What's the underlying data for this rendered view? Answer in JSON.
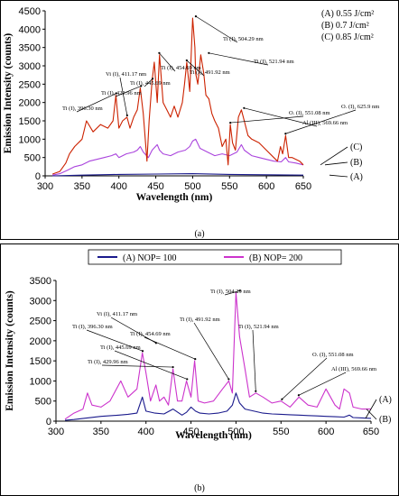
{
  "chart_data": [
    {
      "type": "line",
      "panel_label": "(a)",
      "xlabel": "Wavelength (nm)",
      "ylabel": "Emission Intensity (counts)",
      "xlim": [
        300,
        650
      ],
      "ylim": [
        0,
        4500
      ],
      "xticks": [
        300,
        350,
        400,
        450,
        500,
        550,
        600,
        650
      ],
      "yticks": [
        0,
        500,
        1000,
        1500,
        2000,
        2500,
        3000,
        3500,
        4000,
        4500
      ],
      "legend_box": [
        "(A) 0.55 J/cm²",
        "(B) 0.7 J/cm²",
        "(C) 0.85 J/cm²"
      ],
      "series": [
        {
          "tag": "(C)",
          "color": "#cc2200",
          "x": [
            310,
            320,
            328,
            333,
            340,
            350,
            356,
            365,
            375,
            385,
            392,
            396,
            400,
            405,
            411,
            415,
            420,
            425,
            429,
            433,
            438,
            441,
            445,
            448,
            452,
            455,
            460,
            465,
            470,
            475,
            480,
            486,
            489,
            492,
            496,
            500,
            503,
            504,
            507,
            511,
            515,
            518,
            522,
            526,
            530,
            535,
            540,
            545,
            548,
            551,
            554,
            558,
            562,
            566,
            570,
            575,
            580,
            590,
            600,
            610,
            615,
            619,
            622,
            626,
            630,
            635,
            640,
            645,
            650
          ],
          "y": [
            50,
            120,
            350,
            600,
            800,
            1000,
            1500,
            1200,
            1400,
            1300,
            1500,
            2200,
            1300,
            1500,
            1600,
            1300,
            1600,
            1800,
            2400,
            1700,
            400,
            1500,
            2600,
            3100,
            2000,
            3300,
            2000,
            1800,
            1600,
            1900,
            1600,
            2000,
            2500,
            3100,
            2300,
            4300,
            3500,
            2800,
            2500,
            3300,
            2800,
            2200,
            2100,
            1700,
            1500,
            1300,
            800,
            1000,
            300,
            1400,
            900,
            700,
            1600,
            1800,
            1500,
            1100,
            1000,
            900,
            700,
            500,
            400,
            800,
            600,
            1100,
            500,
            500,
            450,
            400,
            300
          ]
        },
        {
          "tag": "(B)",
          "color": "#aa44dd",
          "x": [
            310,
            320,
            330,
            340,
            350,
            360,
            370,
            380,
            390,
            396,
            400,
            410,
            420,
            425,
            429,
            433,
            440,
            445,
            452,
            455,
            460,
            470,
            480,
            490,
            496,
            500,
            504,
            510,
            520,
            530,
            540,
            550,
            560,
            566,
            570,
            580,
            590,
            600,
            610,
            620,
            626,
            630,
            640,
            650
          ],
          "y": [
            20,
            60,
            150,
            250,
            300,
            400,
            450,
            500,
            550,
            600,
            500,
            600,
            650,
            700,
            800,
            650,
            500,
            700,
            850,
            700,
            600,
            550,
            650,
            700,
            800,
            950,
            1000,
            750,
            650,
            550,
            600,
            550,
            650,
            850,
            700,
            550,
            500,
            450,
            400,
            380,
            500,
            380,
            350,
            300
          ]
        },
        {
          "tag": "(A)",
          "color": "#1a1a8c",
          "x": [
            310,
            350,
            400,
            450,
            500,
            550,
            600,
            650
          ],
          "y": [
            0,
            20,
            40,
            50,
            60,
            40,
            30,
            20
          ]
        }
      ],
      "annotations": [
        {
          "text": "Ti (I), 396.30 nm",
          "x": 396.3,
          "y": 2200
        },
        {
          "text": "Ti (I), 429.96 nm",
          "x": 429.96,
          "y": 2400
        },
        {
          "text": "Vi (I), 411.17 nm",
          "x": 411.17,
          "y": 1600
        },
        {
          "text": "Ti (I), 445.69 nm",
          "x": 445.69,
          "y": 2600
        },
        {
          "text": "Ti (I), 454.69 nm",
          "x": 454.69,
          "y": 3300
        },
        {
          "text": "Ti (I), 491.92 nm",
          "x": 491.92,
          "y": 3100
        },
        {
          "text": "Ti (I), 504.29 nm",
          "x": 504.29,
          "y": 4300
        },
        {
          "text": "Ti (I), 521.94 nm",
          "x": 521.94,
          "y": 3300
        },
        {
          "text": "O. (I), 551.08 nm",
          "x": 551.08,
          "y": 1400
        },
        {
          "text": "Al (III), 569.66 nm",
          "x": 569.66,
          "y": 1800
        },
        {
          "text": "O. (I), 625.9 nm",
          "x": 625.9,
          "y": 1100
        }
      ]
    },
    {
      "type": "line",
      "panel_label": "(b)",
      "xlabel": "Wavelength (nm)",
      "ylabel": "Emission Intensity (counts)",
      "xlim": [
        300,
        650
      ],
      "ylim": [
        0,
        3500
      ],
      "xticks": [
        300,
        350,
        400,
        450,
        500,
        550,
        600,
        650
      ],
      "yticks": [
        0,
        500,
        1000,
        1500,
        2000,
        2500,
        3000,
        3500
      ],
      "series": [
        {
          "name": "(A) NOP= 100",
          "tag": "(A)",
          "color": "#1a1a8c",
          "x": [
            310,
            320,
            335,
            350,
            370,
            380,
            390,
            396,
            400,
            410,
            420,
            430,
            440,
            445,
            450,
            455,
            460,
            470,
            480,
            490,
            496,
            500,
            504,
            510,
            520,
            530,
            540,
            550,
            560,
            570,
            580,
            590,
            600,
            610,
            620,
            626,
            630,
            640,
            650
          ],
          "y": [
            20,
            40,
            80,
            120,
            150,
            170,
            200,
            600,
            250,
            200,
            180,
            300,
            150,
            220,
            350,
            250,
            200,
            180,
            200,
            250,
            400,
            700,
            450,
            300,
            250,
            200,
            180,
            170,
            160,
            150,
            140,
            130,
            120,
            110,
            100,
            150,
            90,
            80,
            70
          ]
        },
        {
          "name": "(B) NOP= 200",
          "tag": "(B)",
          "color": "#cc33cc",
          "x": [
            310,
            320,
            330,
            335,
            340,
            350,
            360,
            372,
            380,
            390,
            396,
            400,
            405,
            411,
            415,
            420,
            425,
            430,
            435,
            440,
            445,
            450,
            454,
            458,
            465,
            475,
            485,
            492,
            496,
            500,
            504,
            510,
            515,
            522,
            530,
            540,
            550,
            560,
            570,
            580,
            590,
            600,
            610,
            615,
            620,
            626,
            630,
            640,
            650
          ],
          "y": [
            50,
            200,
            300,
            700,
            400,
            350,
            500,
            1000,
            600,
            800,
            1700,
            1200,
            500,
            900,
            500,
            600,
            400,
            1300,
            500,
            500,
            1000,
            600,
            1500,
            500,
            450,
            500,
            800,
            1000,
            700,
            3200,
            2100,
            1300,
            600,
            700,
            600,
            450,
            500,
            350,
            600,
            400,
            350,
            800,
            400,
            300,
            800,
            700,
            350,
            300,
            300
          ]
        }
      ],
      "annotations": [
        {
          "text": "Ti (I), 396.30 nm",
          "x": 396.3,
          "y": 1700
        },
        {
          "text": "Vi (I), 411.17 nm",
          "x": 411.17,
          "y": 1900
        },
        {
          "text": "Ti (I), 429.96 nm",
          "x": 429.96,
          "y": 1300
        },
        {
          "text": "Ti (I), 445.69 nm",
          "x": 445.69,
          "y": 1000
        },
        {
          "text": "Ti (I), 454.69 nm",
          "x": 454.69,
          "y": 1500
        },
        {
          "text": "Ti (I), 491.92 nm",
          "x": 491.92,
          "y": 1000
        },
        {
          "text": "Ti (I), 504.29 nm",
          "x": 504.29,
          "y": 3200
        },
        {
          "text": "Ti (I), 521.94 nm",
          "x": 521.94,
          "y": 700
        },
        {
          "text": "O. (I), 551.08 nm",
          "x": 551.08,
          "y": 500
        },
        {
          "text": "Al (III), 569.66 nm",
          "x": 569.66,
          "y": 600
        }
      ]
    }
  ]
}
